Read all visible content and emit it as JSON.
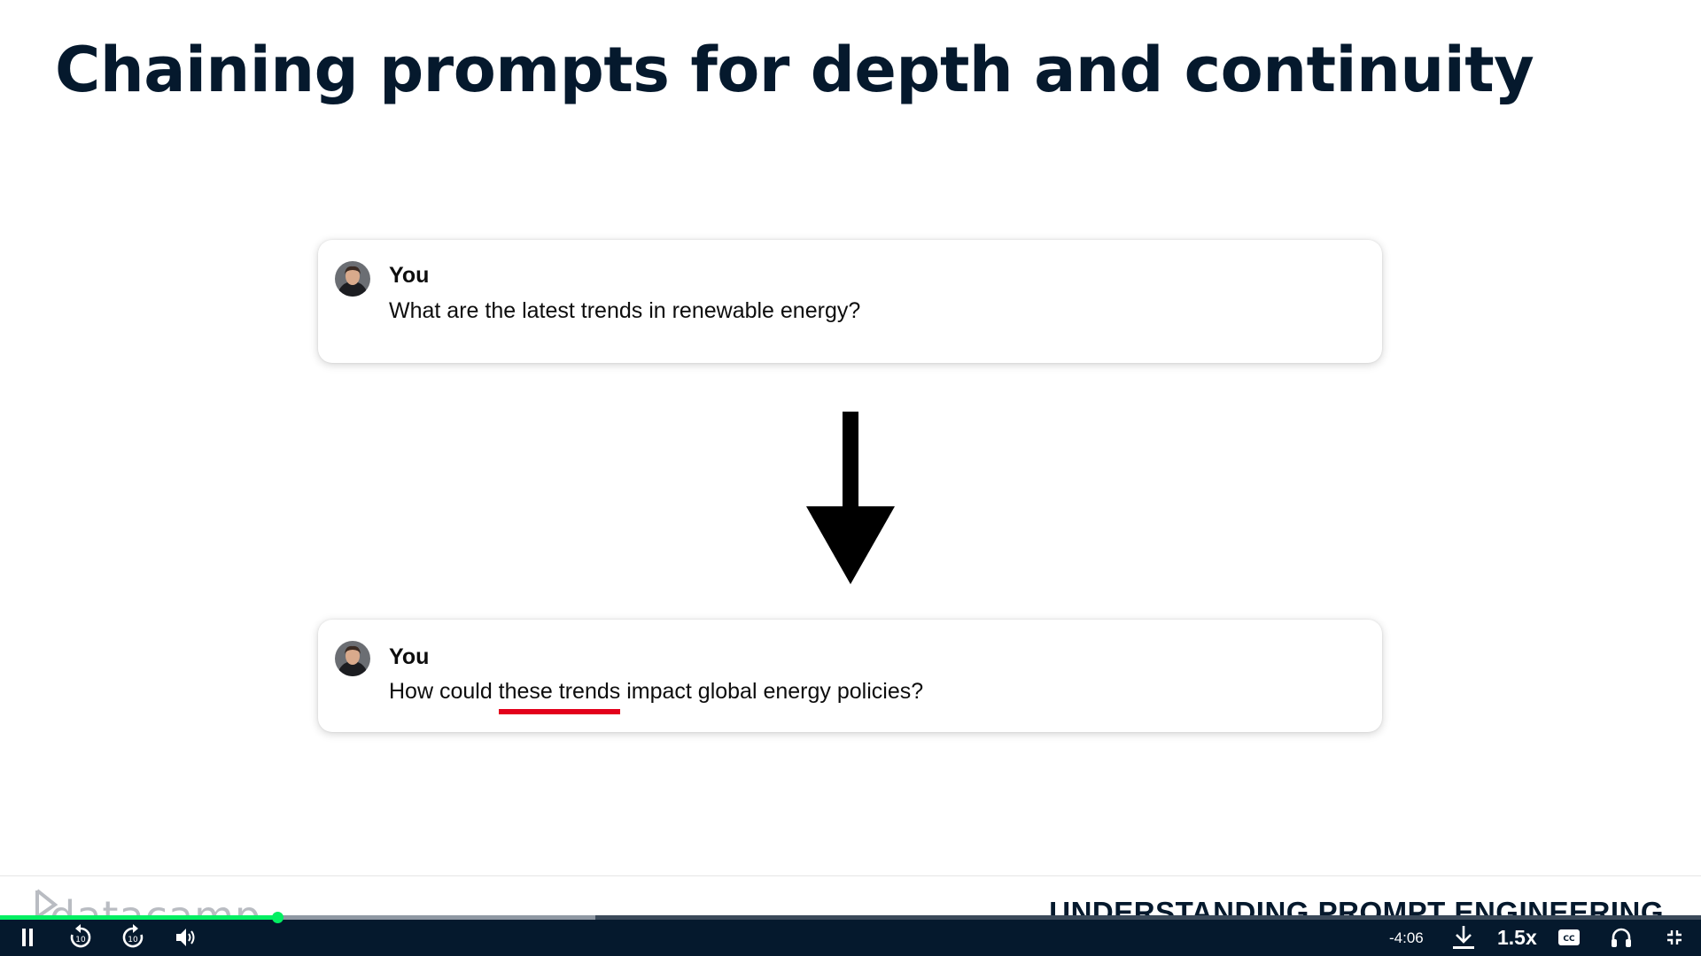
{
  "slide": {
    "title": "Chaining prompts for depth and continuity",
    "cards": [
      {
        "author": "You",
        "message": "What are the latest trends in renewable energy?"
      },
      {
        "author": "You",
        "message_before": "How could ",
        "message_highlight": "these trends",
        "message_after": " impact global energy policies?"
      }
    ],
    "logo_text": "datacamp",
    "course_title": "UNDERSTANDING PROMPT ENGINEERING",
    "highlight_color": "#e3001b"
  },
  "player": {
    "progress": 0.163,
    "buffered": 0.35,
    "remaining_time": "-4:06",
    "playback_speed": "1.5x",
    "buttons": [
      "pause-icon",
      "rewind-10-icon",
      "forward-10-icon",
      "volume-icon",
      "download-icon",
      "captions-icon",
      "headphones-icon",
      "exit-fullscreen-icon"
    ],
    "accent_color": "#03ef62"
  }
}
